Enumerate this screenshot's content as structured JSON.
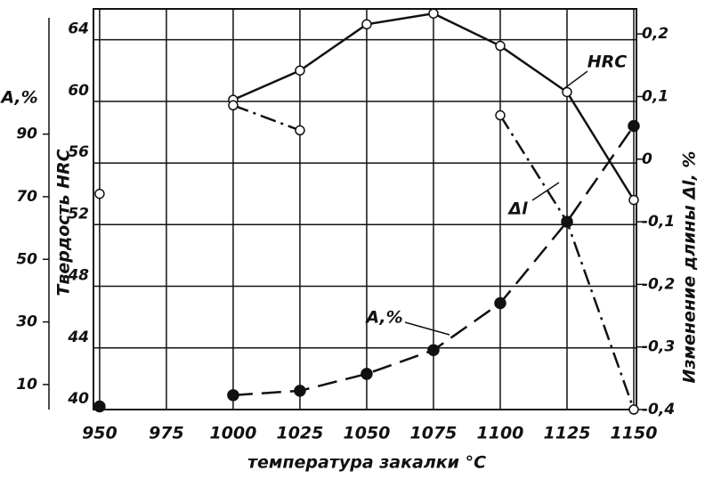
{
  "chart_data": {
    "type": "line",
    "xlabel": "температура закалки °C",
    "ylabel": "Твердость HRC",
    "y2label": "Изменение длины Δl, %",
    "y3label": "A,%",
    "annotations": [
      "HRC",
      "Δl",
      "A,%"
    ],
    "x": [
      950,
      975,
      1000,
      1025,
      1050,
      1075,
      1100,
      1125,
      1150
    ],
    "xlim": [
      947.7,
      1151
    ],
    "xticks": [
      950,
      975,
      1000,
      1025,
      1050,
      1075,
      1100,
      1125,
      1150
    ],
    "ylim": [
      40,
      66
    ],
    "yticks": [
      40,
      44,
      48,
      52,
      56,
      60,
      64
    ],
    "y2lim": [
      -0.4,
      0.24
    ],
    "y2ticks": [
      {
        "value": -0.4,
        "label": "-0,4"
      },
      {
        "value": -0.3,
        "label": "-0,3"
      },
      {
        "value": -0.2,
        "label": "-0,2"
      },
      {
        "value": -0.1,
        "label": "-0,1"
      },
      0,
      {
        "value": 0.1,
        "label": "0,1"
      },
      {
        "value": 0.2,
        "label": "0,2"
      }
    ],
    "y3lim": [
      2,
      130
    ],
    "y3ticks": [
      10,
      30,
      50,
      70,
      90
    ],
    "grid": true,
    "series": [
      {
        "name": "HRC",
        "axis": "y",
        "color": "#111111",
        "dash": "solid",
        "marker": "open",
        "values": [
          54.0,
          null,
          60.1,
          62.0,
          65.0,
          65.7,
          63.6,
          60.6,
          53.6
        ]
      },
      {
        "name": "Δl",
        "axis": "y2",
        "color": "#111111",
        "dash": "dashdot",
        "marker": "open",
        "values": [
          null,
          null,
          0.086,
          0.046,
          null,
          null,
          0.07,
          -0.1,
          -0.4
        ]
      },
      {
        "name": "A,%",
        "axis": "y3",
        "color": "#111111",
        "dash": "dashed",
        "marker": "filled",
        "values": [
          3,
          null,
          6.6,
          8,
          13.4,
          21,
          36,
          62,
          92.6
        ]
      }
    ]
  }
}
